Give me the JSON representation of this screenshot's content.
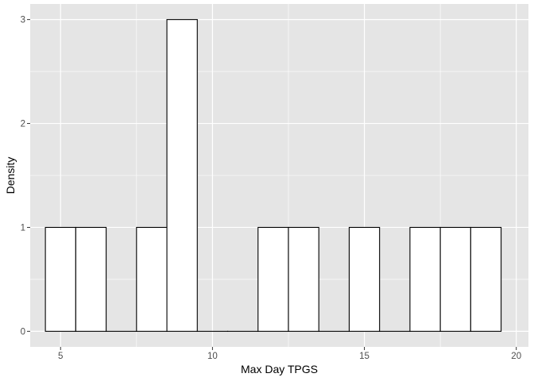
{
  "chart_data": {
    "type": "bar",
    "xlabel": "Max Day TPGS",
    "ylabel": "Density",
    "xlim": [
      4,
      20.4
    ],
    "ylim": [
      -0.15,
      3.15
    ],
    "x_ticks": [
      5,
      10,
      15,
      20
    ],
    "y_ticks": [
      0,
      1,
      2,
      3
    ],
    "grid": true,
    "bins": [
      {
        "start": 4.5,
        "end": 5.5,
        "value": 1
      },
      {
        "start": 5.5,
        "end": 6.5,
        "value": 1
      },
      {
        "start": 6.5,
        "end": 7.5,
        "value": 0
      },
      {
        "start": 7.5,
        "end": 8.5,
        "value": 1
      },
      {
        "start": 8.5,
        "end": 9.5,
        "value": 3
      },
      {
        "start": 9.5,
        "end": 10.5,
        "value": 0
      },
      {
        "start": 10.5,
        "end": 11.5,
        "value": 0
      },
      {
        "start": 11.5,
        "end": 12.5,
        "value": 1
      },
      {
        "start": 12.5,
        "end": 13.5,
        "value": 1
      },
      {
        "start": 13.5,
        "end": 14.5,
        "value": 0
      },
      {
        "start": 14.5,
        "end": 15.5,
        "value": 1
      },
      {
        "start": 15.5,
        "end": 16.5,
        "value": 0
      },
      {
        "start": 16.5,
        "end": 17.5,
        "value": 1
      },
      {
        "start": 17.5,
        "end": 18.5,
        "value": 1
      },
      {
        "start": 18.5,
        "end": 19.5,
        "value": 1
      }
    ],
    "colors": {
      "panel_background": "#e5e5e5",
      "grid_line": "#ffffff",
      "bar_fill": "#ffffff",
      "bar_outline": "#000000",
      "tick_label": "#4d4d4d",
      "axis_title": "#000000"
    }
  }
}
